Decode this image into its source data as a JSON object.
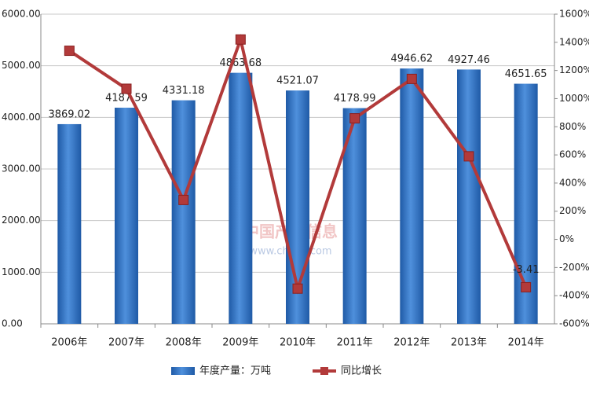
{
  "chart_data": {
    "type": "bar_line",
    "categories": [
      "2006年",
      "2007年",
      "2008年",
      "2009年",
      "2010年",
      "2011年",
      "2012年",
      "2013年",
      "2014年"
    ],
    "series": [
      {
        "name": "年度产量：万吨",
        "color": "#2f72c0",
        "type": "bar",
        "values": [
          3869.02,
          4187.59,
          4331.18,
          4863.68,
          4521.07,
          4178.99,
          4946.62,
          4927.46,
          4651.65
        ]
      },
      {
        "name": "同比增长",
        "color": "#b23a3a",
        "type": "line",
        "axis": "y2",
        "values": [
          1340,
          1070,
          280,
          1420,
          -350,
          860,
          1140,
          590,
          -340
        ]
      }
    ],
    "ylim": [
      0,
      6000
    ],
    "yticks": [
      {
        "value": 0,
        "label": "0.00"
      },
      {
        "value": 1000,
        "label": "1000.00"
      },
      {
        "value": 2000,
        "label": "2000.00"
      },
      {
        "value": 3000,
        "label": "3000.00"
      },
      {
        "value": 4000,
        "label": "4000.00"
      },
      {
        "value": 5000,
        "label": "5000.00"
      },
      {
        "value": 6000,
        "label": "6000.00"
      }
    ],
    "y2lim": [
      -600,
      1600
    ],
    "y2ticks": [
      {
        "value": -600,
        "label": "-600%"
      },
      {
        "value": -400,
        "label": "-400%"
      },
      {
        "value": -200,
        "label": "-200%"
      },
      {
        "value": 0,
        "label": "0%"
      },
      {
        "value": 200,
        "label": "200%"
      },
      {
        "value": 400,
        "label": "400%"
      },
      {
        "value": 600,
        "label": "600%"
      },
      {
        "value": 800,
        "label": "800%"
      },
      {
        "value": 1000,
        "label": "1000%"
      },
      {
        "value": 1200,
        "label": "1200%"
      },
      {
        "value": 1400,
        "label": "1400%"
      },
      {
        "value": 1600,
        "label": "1600%"
      }
    ],
    "grid": true,
    "legend": "bottom",
    "annotations": [
      "-3.41"
    ],
    "watermark": [
      "中国产业信息",
      "www.chyxx.com"
    ]
  }
}
